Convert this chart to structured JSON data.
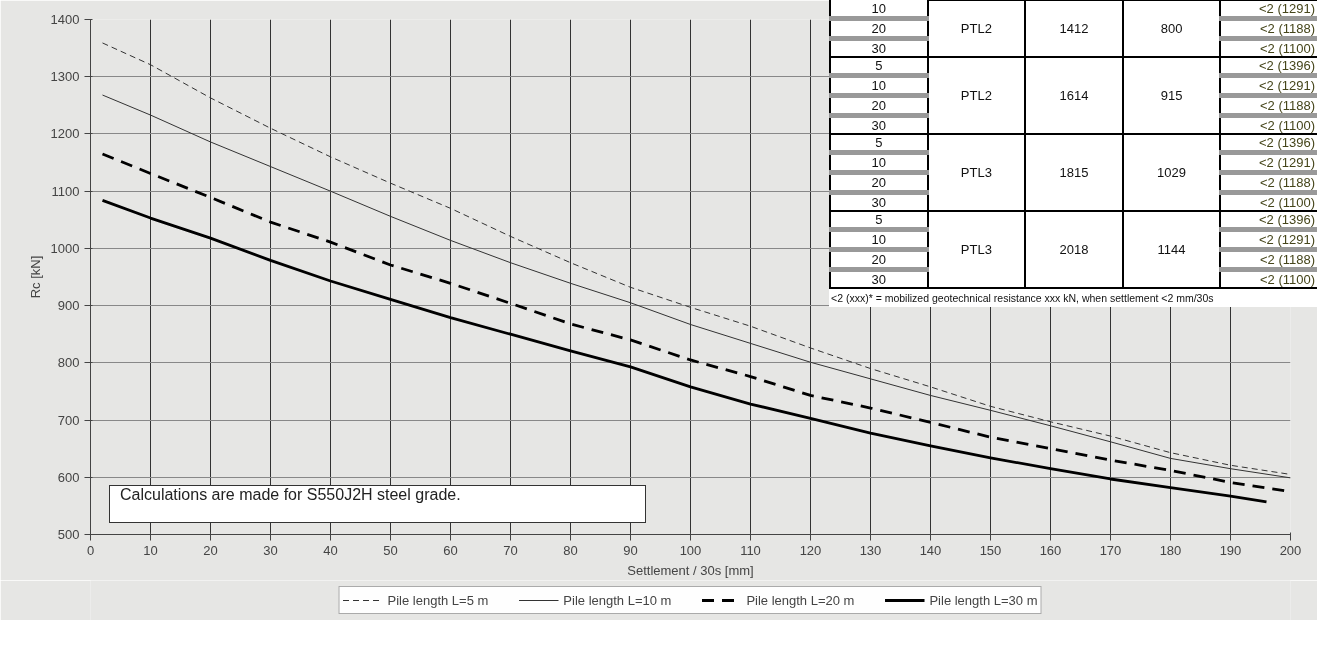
{
  "chart_data": {
    "type": "line",
    "xlabel": "Settlement / 30s [mm]",
    "ylabel": "Rc [kN]",
    "xlim": [
      0,
      200
    ],
    "ylim": [
      500,
      1400
    ],
    "xticks": [
      0,
      10,
      20,
      30,
      40,
      50,
      60,
      70,
      80,
      90,
      100,
      110,
      120,
      130,
      140,
      150,
      160,
      170,
      180,
      190,
      200
    ],
    "yticks": [
      500,
      600,
      700,
      800,
      900,
      1000,
      1100,
      1200,
      1300,
      1400
    ],
    "grid": true,
    "legend": "bottom",
    "marker": "none",
    "series": [
      {
        "name": "Pile length L=5 m",
        "color": "#333333",
        "line_style": "dashed",
        "x": [
          2,
          10,
          20,
          30,
          40,
          50,
          60,
          70,
          80,
          90,
          100,
          110,
          120,
          130,
          140,
          150,
          160,
          170,
          180,
          190,
          200
        ],
        "values": [
          1359,
          1321,
          1263,
          1210,
          1160,
          1114,
          1070,
          1021,
          975,
          932,
          897,
          864,
          826,
          790,
          758,
          724,
          697,
          672,
          643,
          621,
          605
        ]
      },
      {
        "name": "Pile length L=10 m",
        "color": "#333333",
        "line_style": "solid",
        "x": [
          2,
          10,
          20,
          30,
          40,
          50,
          60,
          70,
          80,
          90,
          100,
          110,
          120,
          130,
          140,
          150,
          160,
          170,
          180,
          190,
          200
        ],
        "values": [
          1268,
          1233,
          1186,
          1143,
          1100,
          1056,
          1014,
          975,
          939,
          905,
          867,
          834,
          801,
          772,
          743,
          717,
          690,
          662,
          633,
          615,
          599
        ]
      },
      {
        "name": "Pile length L=20 m",
        "color": "#000000",
        "line_style": "dashed",
        "x": [
          2,
          10,
          20,
          30,
          40,
          50,
          60,
          70,
          80,
          90,
          100,
          110,
          120,
          130,
          140,
          150,
          160,
          170,
          180,
          190,
          200
        ],
        "values": [
          1165,
          1131,
          1089,
          1046,
          1011,
          971,
          939,
          904,
          868,
          840,
          805,
          776,
          743,
          721,
          696,
          670,
          650,
          630,
          612,
          591,
          575
        ]
      },
      {
        "name": "Pile length L=30 m",
        "color": "#000000",
        "line_style": "solid",
        "x": [
          2,
          10,
          20,
          30,
          40,
          50,
          60,
          70,
          80,
          90,
          100,
          110,
          120,
          130,
          140,
          150,
          160,
          170,
          180,
          190,
          196
        ],
        "values": [
          1084,
          1053,
          1018,
          979,
          943,
          911,
          879,
          850,
          821,
          793,
          758,
          728,
          703,
          677,
          655,
          634,
          615,
          597,
          582,
          567,
          557
        ]
      }
    ],
    "annotations": [
      "Calculations are made for S550J2H steel grade.",
      "<2 (xxx)* = mobilized geotechnical resistance xxx kN, when settlement <2 mm/30s",
      "10",
      "20",
      "30",
      "PTL2",
      "1412",
      "800",
      "<2 (1291)",
      "<2 (1188)",
      "<2 (1100)",
      "5",
      "10",
      "20",
      "30",
      "PTL2",
      "1614",
      "915",
      "<2 (1396)",
      "<2 (1291)",
      "<2 (1188)",
      "<2 (1100)",
      "5",
      "10",
      "20",
      "30",
      "PTL3",
      "1815",
      "1029",
      "<2 (1396)",
      "<2 (1291)",
      "<2 (1188)",
      "<2 (1100)",
      "5",
      "10",
      "20",
      "30",
      "PTL3",
      "2018",
      "1144",
      "<2 (1396)",
      "<2 (1291)",
      "<2 (1188)",
      "<2 (1100)"
    ]
  }
}
